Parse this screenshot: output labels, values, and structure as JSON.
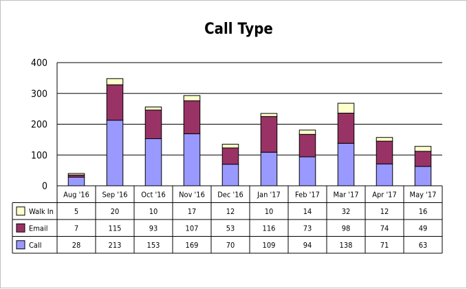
{
  "chart_data": {
    "type": "bar",
    "stacked": true,
    "title": "Call Type",
    "xlabel": "",
    "ylabel": "",
    "ylim": [
      0,
      400
    ],
    "yticks": [
      0,
      100,
      200,
      300,
      400
    ],
    "grid": true,
    "legend": "data-table",
    "categories": [
      "Aug '16",
      "Sep '16",
      "Oct '16",
      "Nov '16",
      "Dec '16",
      "Jan '17",
      "Feb '17",
      "Mar '17",
      "Apr '17",
      "May '17"
    ],
    "series": [
      {
        "name": "Call",
        "color": "#9999ff",
        "values": [
          28,
          213,
          153,
          169,
          70,
          109,
          94,
          138,
          71,
          63
        ]
      },
      {
        "name": "Email",
        "color": "#993366",
        "values": [
          7,
          115,
          93,
          107,
          53,
          116,
          73,
          98,
          74,
          49
        ]
      },
      {
        "name": "Walk In",
        "color": "#ffffcc",
        "values": [
          5,
          20,
          10,
          17,
          12,
          10,
          14,
          32,
          12,
          16
        ]
      }
    ],
    "table_row_order": [
      "Walk In",
      "Email",
      "Call"
    ]
  }
}
